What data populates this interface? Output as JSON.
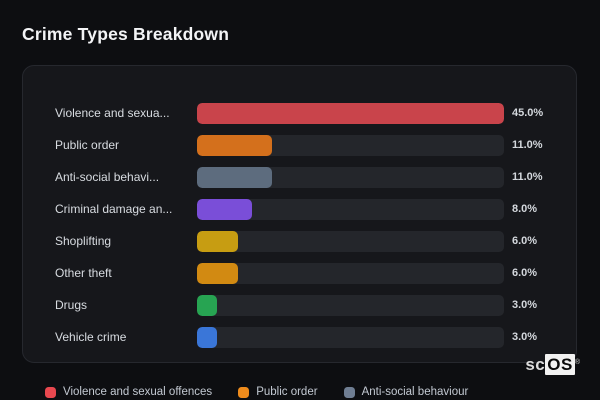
{
  "title": "Crime Types Breakdown",
  "colors": {
    "page_background": "#0d0e11",
    "panel_background": "#16171b",
    "panel_border": "#26282e",
    "track": "#24262b",
    "label_text": "#d8dce1",
    "value_text": "#d4d8dd",
    "legend_text": "#c3c9d2",
    "title_text": "#f3f4f6"
  },
  "chart": {
    "scale_max": 45,
    "rows": [
      {
        "label_display": "Violence and sexua...",
        "value": 45,
        "value_label": "45.0%",
        "color": "#c9444b"
      },
      {
        "label_display": "Public order",
        "value": 11,
        "value_label": "11.0%",
        "color": "#d4701c"
      },
      {
        "label_display": "Anti-social behavi...",
        "value": 11,
        "value_label": "11.0%",
        "color": "#5d6c7e"
      },
      {
        "label_display": "Criminal damage an...",
        "value": 8,
        "value_label": "8.0%",
        "color": "#7a4ed8"
      },
      {
        "label_display": "Shoplifting",
        "value": 6,
        "value_label": "6.0%",
        "color": "#c79d12"
      },
      {
        "label_display": "Other theft",
        "value": 6,
        "value_label": "6.0%",
        "color": "#d28a12"
      },
      {
        "label_display": "Drugs",
        "value": 3,
        "value_label": "3.0%",
        "color": "#27a452"
      },
      {
        "label_display": "Vehicle crime",
        "value": 3,
        "value_label": "3.0%",
        "color": "#3a76d8"
      }
    ]
  },
  "legend": {
    "items": [
      {
        "label": "Violence and sexual offences",
        "color": "#e8484f"
      },
      {
        "label": "Public order",
        "color": "#ef8c1c"
      },
      {
        "label": "Anti-social behaviour",
        "color": "#6f7e93"
      }
    ]
  },
  "watermark": {
    "sc": "sc",
    "os": "OS",
    "reg": "®"
  },
  "chart_data": {
    "type": "bar",
    "orientation": "horizontal",
    "title": "Crime Types Breakdown",
    "categories": [
      "Violence and sexua...",
      "Public order",
      "Anti-social behavi...",
      "Criminal damage an...",
      "Shoplifting",
      "Other theft",
      "Drugs",
      "Vehicle crime"
    ],
    "values": [
      45.0,
      11.0,
      11.0,
      8.0,
      6.0,
      6.0,
      3.0,
      3.0
    ],
    "value_labels": [
      "45.0%",
      "11.0%",
      "11.0%",
      "8.0%",
      "6.0%",
      "6.0%",
      "3.0%",
      "3.0%"
    ],
    "bar_colors": [
      "#c9444b",
      "#d4701c",
      "#5d6c7e",
      "#7a4ed8",
      "#c79d12",
      "#d28a12",
      "#27a452",
      "#3a76d8"
    ],
    "xlabel": "",
    "ylabel": "",
    "xlim": [
      0,
      45
    ],
    "grid": false,
    "legend_entries": [
      "Violence and sexual offences",
      "Public order",
      "Anti-social behaviour"
    ],
    "legend_position": "bottom"
  }
}
